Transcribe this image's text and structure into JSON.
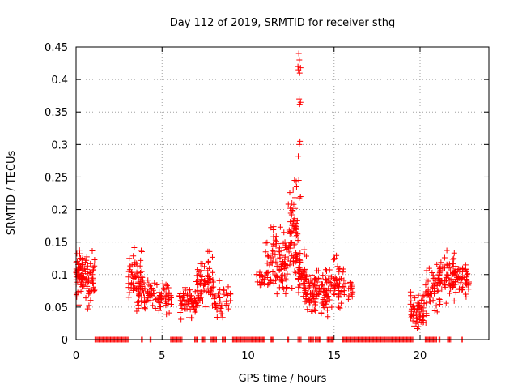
{
  "chart_data": {
    "type": "scatter",
    "title": "Day 112 of 2019, SRMTID for receiver sthg",
    "xlabel": "GPS time / hours",
    "ylabel": "SRMTID / TECUs",
    "xlim": [
      0,
      24
    ],
    "ylim": [
      0,
      0.45
    ],
    "xticks": [
      0,
      5,
      10,
      15,
      20
    ],
    "xtick_labels": [
      "0",
      "5",
      "10",
      "15",
      "20"
    ],
    "yticks": [
      0,
      0.05,
      0.1,
      0.15,
      0.2,
      0.25,
      0.3,
      0.35,
      0.4,
      0.45
    ],
    "ytick_labels": [
      "0",
      "0.05",
      "0.1",
      "0.15",
      "0.2",
      "0.25",
      "0.3",
      "0.35",
      "0.4",
      "0.45"
    ],
    "grid": true,
    "marker": "+",
    "marker_color": "#ff0000",
    "series": [
      {
        "name": "SRMTID",
        "clusters": [
          {
            "x": [
              0.0,
              1.1
            ],
            "y": [
              0.04,
              0.15
            ],
            "count": 110
          },
          {
            "x": [
              3.0,
              3.9
            ],
            "y": [
              0.05,
              0.145
            ],
            "count": 55
          },
          {
            "x": [
              3.5,
              5.6
            ],
            "y": [
              0.03,
              0.1
            ],
            "count": 95
          },
          {
            "x": [
              6.0,
              7.0
            ],
            "y": [
              0.02,
              0.1
            ],
            "count": 60
          },
          {
            "x": [
              7.0,
              8.0
            ],
            "y": [
              0.03,
              0.15
            ],
            "count": 70
          },
          {
            "x": [
              8.0,
              9.0
            ],
            "y": [
              0.02,
              0.1
            ],
            "count": 40
          },
          {
            "x": [
              10.4,
              11.4
            ],
            "y": [
              0.07,
              0.12
            ],
            "count": 25
          },
          {
            "x": [
              11.0,
              12.3
            ],
            "y": [
              0.04,
              0.2
            ],
            "count": 95
          },
          {
            "x": [
              12.3,
              12.9
            ],
            "y": [
              0.06,
              0.26
            ],
            "count": 70
          },
          {
            "x": [
              12.9,
              13.4
            ],
            "y": [
              0.05,
              0.15
            ],
            "count": 50
          },
          {
            "x": [
              13.3,
              14.6
            ],
            "y": [
              0.02,
              0.12
            ],
            "count": 90
          },
          {
            "x": [
              14.5,
              15.7
            ],
            "y": [
              0.03,
              0.145
            ],
            "count": 70
          },
          {
            "x": [
              15.8,
              16.1
            ],
            "y": [
              0.055,
              0.1
            ],
            "count": 12
          },
          {
            "x": [
              19.4,
              20.4
            ],
            "y": [
              0.01,
              0.08
            ],
            "count": 65
          },
          {
            "x": [
              20.3,
              21.2
            ],
            "y": [
              0.03,
              0.125
            ],
            "count": 55
          },
          {
            "x": [
              21.1,
              22.0
            ],
            "y": [
              0.04,
              0.15
            ],
            "count": 55
          },
          {
            "x": [
              21.9,
              22.9
            ],
            "y": [
              0.05,
              0.13
            ],
            "count": 60
          }
        ],
        "spike_points": [
          [
            12.95,
            0.44
          ],
          [
            12.98,
            0.43
          ],
          [
            12.9,
            0.42
          ],
          [
            13.05,
            0.418
          ],
          [
            12.93,
            0.415
          ],
          [
            13.0,
            0.41
          ],
          [
            12.97,
            0.37
          ],
          [
            13.05,
            0.365
          ],
          [
            13.0,
            0.362
          ],
          [
            13.02,
            0.305
          ],
          [
            12.98,
            0.3
          ],
          [
            12.92,
            0.282
          ],
          [
            12.95,
            0.245
          ],
          [
            13.05,
            0.22
          ],
          [
            12.98,
            0.218
          ],
          [
            12.7,
            0.245
          ],
          [
            12.62,
            0.23
          ],
          [
            12.55,
            0.21
          ]
        ],
        "zero_points": [
          [
            1.1,
            3.1
          ],
          [
            3.8,
            3.9
          ],
          [
            4.3,
            4.4
          ],
          [
            5.5,
            6.2
          ],
          [
            6.9,
            7.1
          ],
          [
            7.3,
            7.5
          ],
          [
            7.8,
            8.2
          ],
          [
            8.5,
            8.7
          ],
          [
            9.1,
            11.0
          ],
          [
            11.3,
            11.5
          ],
          [
            12.3,
            12.4
          ],
          [
            12.9,
            13.1
          ],
          [
            13.5,
            13.8
          ],
          [
            13.9,
            14.2
          ],
          [
            14.6,
            15.0
          ],
          [
            15.5,
            19.6
          ],
          [
            20.3,
            21.0
          ],
          [
            21.1,
            21.2
          ],
          [
            21.6,
            21.8
          ],
          [
            22.4,
            22.5
          ]
        ]
      }
    ]
  }
}
